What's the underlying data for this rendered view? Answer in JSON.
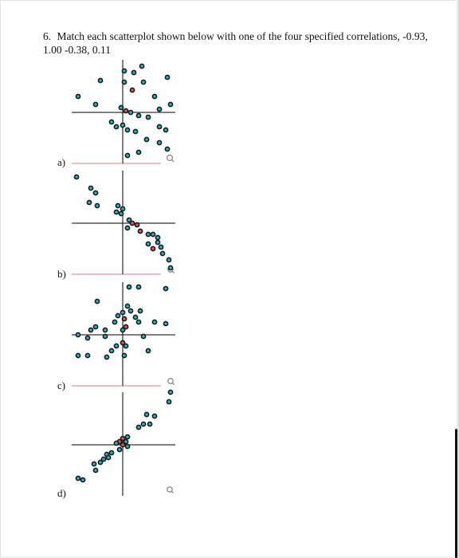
{
  "question": {
    "number": "6.",
    "text": "Match each scatterplot shown below with one of the four specified correlations, -0.93, 1.00 -0.38, 0.11"
  },
  "plots": [
    {
      "label": "a)"
    },
    {
      "label": "b)"
    },
    {
      "label": "c)"
    },
    {
      "label": "d)"
    }
  ],
  "colors": {
    "point_stroke": "#1a1a1a",
    "point_fill": "#28b5bf",
    "overlap_fill": "#e0555f",
    "axis": "#000000",
    "separator": "#dc7c8c"
  },
  "icons": [
    "magnifier-icon",
    "magnifier-icon",
    "magnifier-icon",
    "magnifier-icon"
  ]
}
